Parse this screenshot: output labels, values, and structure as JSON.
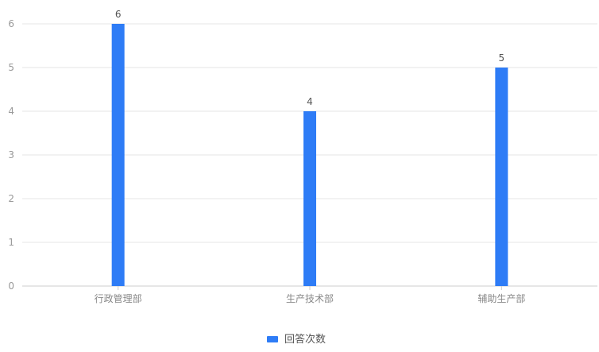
{
  "chart_data": {
    "type": "bar",
    "categories": [
      "行政管理部",
      "生产技术部",
      "辅助生产部"
    ],
    "series": [
      {
        "name": "回答次数",
        "values": [
          6,
          4,
          5
        ],
        "color": "#2e7cf6"
      }
    ],
    "ylim": [
      0,
      6
    ],
    "yticks": [
      0,
      1,
      2,
      3,
      4,
      5,
      6
    ],
    "grid": true,
    "legend_position": "bottom-center",
    "data_labels": true,
    "colors": {
      "grid": "#e6e6e6",
      "axis": "#cccccc"
    }
  }
}
